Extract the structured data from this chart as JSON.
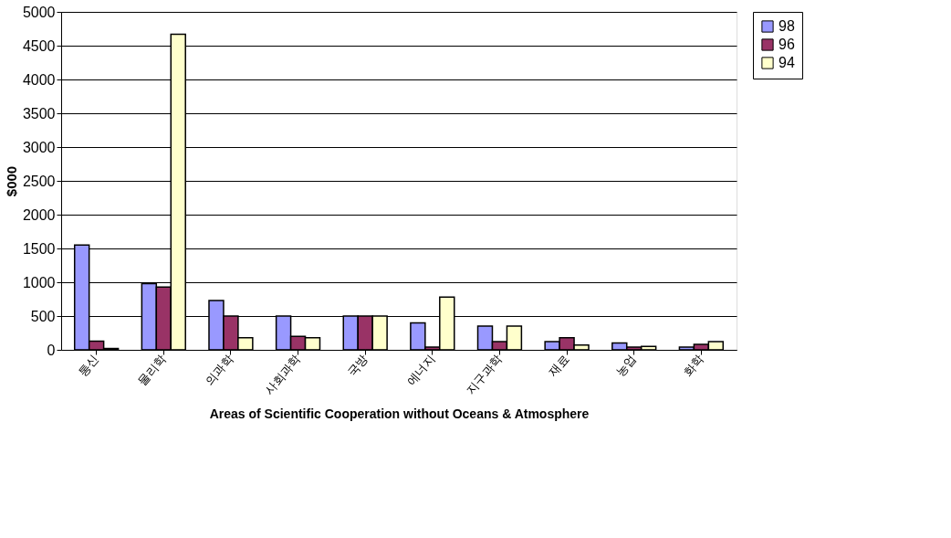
{
  "chart_data": {
    "type": "bar",
    "xlabel": "Areas of Scientific Cooperation without Oceans & Atmosphere",
    "ylabel": "$000",
    "categories": [
      "통신",
      "물리학",
      "의과학",
      "사회과학",
      "국방",
      "에너지",
      "지구과학",
      "재료",
      "농업",
      "화학"
    ],
    "series": [
      {
        "name": "98",
        "color": "#9999ff",
        "values": [
          1550,
          980,
          730,
          500,
          500,
          400,
          350,
          120,
          100,
          40
        ]
      },
      {
        "name": "96",
        "color": "#993366",
        "values": [
          130,
          930,
          500,
          200,
          500,
          40,
          120,
          180,
          40,
          80
        ]
      },
      {
        "name": "94",
        "color": "#ffffcc",
        "values": [
          20,
          4670,
          180,
          180,
          500,
          780,
          350,
          70,
          50,
          120
        ]
      }
    ],
    "ylim": [
      0,
      5000
    ],
    "yticks": [
      0,
      500,
      1000,
      1500,
      2000,
      2500,
      3000,
      3500,
      4000,
      4500,
      5000
    ],
    "grid": "y",
    "legend": "right"
  }
}
